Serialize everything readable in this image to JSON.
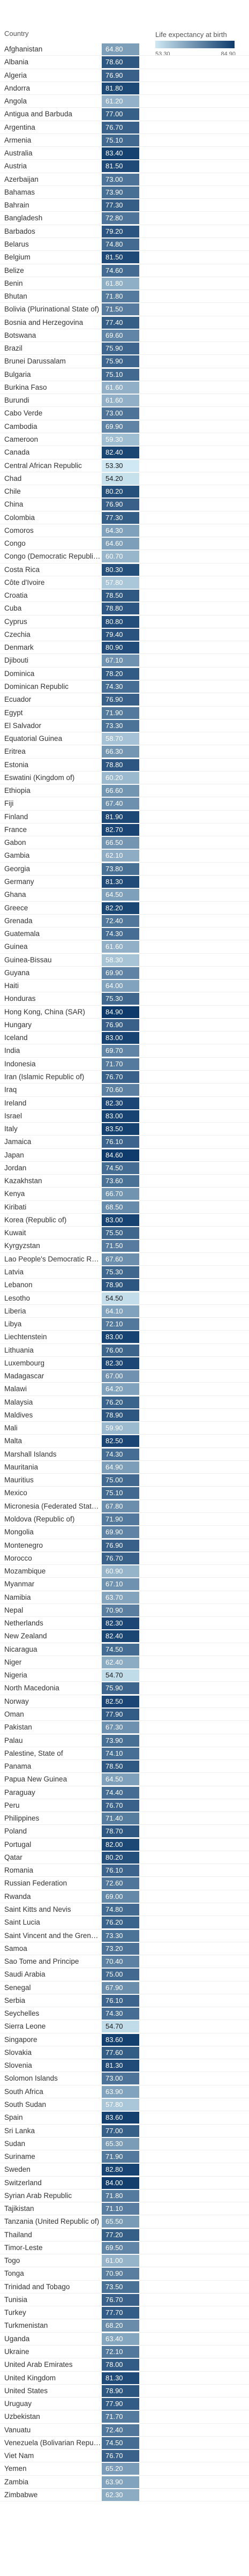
{
  "chart_data": {
    "type": "heatmap",
    "column_header": "Country",
    "legend": {
      "title": "Life expectancy at birth",
      "min_label": "53.30",
      "max_label": "84.90",
      "min": 53.3,
      "max": 84.9,
      "color_low": "#cfe8f3",
      "color_high": "#0d3a6b"
    },
    "categories": [
      "Afghanistan",
      "Albania",
      "Algeria",
      "Andorra",
      "Angola",
      "Antigua and Barbuda",
      "Argentina",
      "Armenia",
      "Australia",
      "Austria",
      "Azerbaijan",
      "Bahamas",
      "Bahrain",
      "Bangladesh",
      "Barbados",
      "Belarus",
      "Belgium",
      "Belize",
      "Benin",
      "Bhutan",
      "Bolivia (Plurinational State of)",
      "Bosnia and Herzegovina",
      "Botswana",
      "Brazil",
      "Brunei Darussalam",
      "Bulgaria",
      "Burkina Faso",
      "Burundi",
      "Cabo Verde",
      "Cambodia",
      "Cameroon",
      "Canada",
      "Central African Republic",
      "Chad",
      "Chile",
      "China",
      "Colombia",
      "Comoros",
      "Congo",
      "Congo (Democratic Republic of the)",
      "Costa Rica",
      "Côte d'Ivoire",
      "Croatia",
      "Cuba",
      "Cyprus",
      "Czechia",
      "Denmark",
      "Djibouti",
      "Dominica",
      "Dominican Republic",
      "Ecuador",
      "Egypt",
      "El Salvador",
      "Equatorial Guinea",
      "Eritrea",
      "Estonia",
      "Eswatini (Kingdom of)",
      "Ethiopia",
      "Fiji",
      "Finland",
      "France",
      "Gabon",
      "Gambia",
      "Georgia",
      "Germany",
      "Ghana",
      "Greece",
      "Grenada",
      "Guatemala",
      "Guinea",
      "Guinea-Bissau",
      "Guyana",
      "Haiti",
      "Honduras",
      "Hong Kong, China (SAR)",
      "Hungary",
      "Iceland",
      "India",
      "Indonesia",
      "Iran (Islamic Republic of)",
      "Iraq",
      "Ireland",
      "Israel",
      "Italy",
      "Jamaica",
      "Japan",
      "Jordan",
      "Kazakhstan",
      "Kenya",
      "Kiribati",
      "Korea (Republic of)",
      "Kuwait",
      "Kyrgyzstan",
      "Lao People's Democratic Republic",
      "Latvia",
      "Lebanon",
      "Lesotho",
      "Liberia",
      "Libya",
      "Liechtenstein",
      "Lithuania",
      "Luxembourg",
      "Madagascar",
      "Malawi",
      "Malaysia",
      "Maldives",
      "Mali",
      "Malta",
      "Marshall Islands",
      "Mauritania",
      "Mauritius",
      "Mexico",
      "Micronesia (Federated States of)",
      "Moldova (Republic of)",
      "Mongolia",
      "Montenegro",
      "Morocco",
      "Mozambique",
      "Myanmar",
      "Namibia",
      "Nepal",
      "Netherlands",
      "New Zealand",
      "Nicaragua",
      "Niger",
      "Nigeria",
      "North Macedonia",
      "Norway",
      "Oman",
      "Pakistan",
      "Palau",
      "Palestine, State of",
      "Panama",
      "Papua New Guinea",
      "Paraguay",
      "Peru",
      "Philippines",
      "Poland",
      "Portugal",
      "Qatar",
      "Romania",
      "Russian Federation",
      "Rwanda",
      "Saint Kitts and Nevis",
      "Saint Lucia",
      "Saint Vincent and the Grenadines",
      "Samoa",
      "Sao Tome and Principe",
      "Saudi Arabia",
      "Senegal",
      "Serbia",
      "Seychelles",
      "Sierra Leone",
      "Singapore",
      "Slovakia",
      "Slovenia",
      "Solomon Islands",
      "South Africa",
      "South Sudan",
      "Spain",
      "Sri Lanka",
      "Sudan",
      "Suriname",
      "Sweden",
      "Switzerland",
      "Syrian Arab Republic",
      "Tajikistan",
      "Tanzania (United Republic of)",
      "Thailand",
      "Timor-Leste",
      "Togo",
      "Tonga",
      "Trinidad and Tobago",
      "Tunisia",
      "Turkey",
      "Turkmenistan",
      "Uganda",
      "Ukraine",
      "United Arab Emirates",
      "United Kingdom",
      "United States",
      "Uruguay",
      "Uzbekistan",
      "Vanuatu",
      "Venezuela (Bolivarian Republic of)",
      "Viet Nam",
      "Yemen",
      "Zambia",
      "Zimbabwe"
    ],
    "values": [
      64.8,
      78.6,
      76.9,
      81.8,
      61.2,
      77.0,
      76.7,
      75.1,
      83.4,
      81.5,
      73.0,
      73.9,
      77.3,
      72.8,
      79.2,
      74.8,
      81.5,
      74.6,
      61.8,
      71.8,
      71.5,
      77.4,
      69.6,
      75.9,
      75.9,
      75.1,
      61.6,
      61.6,
      73.0,
      69.9,
      59.3,
      82.4,
      53.3,
      54.2,
      80.2,
      76.9,
      77.3,
      64.3,
      64.6,
      60.7,
      80.3,
      57.8,
      78.5,
      78.8,
      80.8,
      79.4,
      80.9,
      67.1,
      78.2,
      74.3,
      76.9,
      71.9,
      73.3,
      58.7,
      66.3,
      78.8,
      60.2,
      66.6,
      67.4,
      81.9,
      82.7,
      66.5,
      62.1,
      73.8,
      81.3,
      64.5,
      82.2,
      72.4,
      74.3,
      61.6,
      58.3,
      69.9,
      64.0,
      75.3,
      84.9,
      76.9,
      83.0,
      69.7,
      71.7,
      76.7,
      70.6,
      82.3,
      83.0,
      83.5,
      76.1,
      84.6,
      74.5,
      73.6,
      66.7,
      68.5,
      83.0,
      75.5,
      71.5,
      67.6,
      75.3,
      78.9,
      54.5,
      64.1,
      72.1,
      83.0,
      76.0,
      82.3,
      67.0,
      64.2,
      76.2,
      78.9,
      59.9,
      82.5,
      74.3,
      64.9,
      75.0,
      75.1,
      67.8,
      71.9,
      69.9,
      76.9,
      76.7,
      60.9,
      67.1,
      63.7,
      70.9,
      82.3,
      82.4,
      74.5,
      62.4,
      54.7,
      75.9,
      82.5,
      77.9,
      67.3,
      73.9,
      74.1,
      78.5,
      64.5,
      74.4,
      76.7,
      71.4,
      78.7,
      82.0,
      80.2,
      76.1,
      72.6,
      69.0,
      74.8,
      76.2,
      73.3,
      73.2,
      70.4,
      75.0,
      67.9,
      76.1,
      74.3,
      54.7,
      83.6,
      77.6,
      81.3,
      73.0,
      63.9,
      57.8,
      83.6,
      77.0,
      65.3,
      71.9,
      82.8,
      84.0,
      71.8,
      71.1,
      65.5,
      77.2,
      69.5,
      61.0,
      70.9,
      73.5,
      76.7,
      77.7,
      68.2,
      63.4,
      72.1,
      78.0,
      81.3,
      78.9,
      77.9,
      71.7,
      72.4,
      74.5,
      76.7,
      65.2,
      63.9,
      62.3
    ]
  }
}
